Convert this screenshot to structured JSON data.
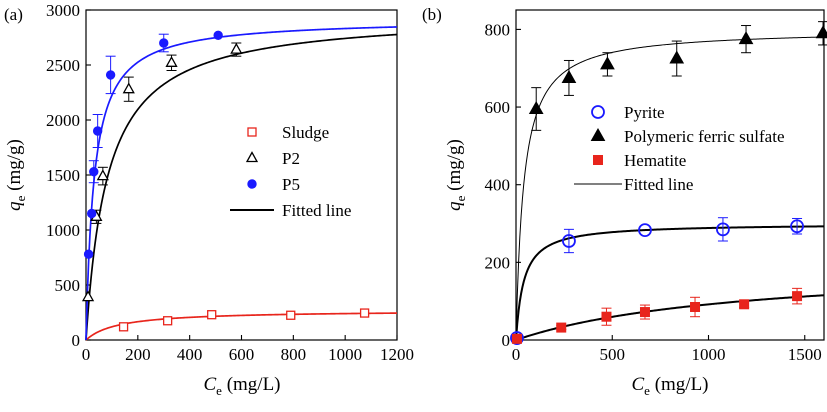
{
  "chart_data": [
    {
      "type": "scatter",
      "panel_label": "(a)",
      "xlabel": {
        "main": "C",
        "sub": "e",
        "unit": " (mg/L)"
      },
      "ylabel": {
        "main": "q",
        "sub": "e",
        "unit": " (mg/g)"
      },
      "xlim": [
        0,
        1200
      ],
      "ylim": [
        0,
        3000
      ],
      "xticks": [
        0,
        200,
        400,
        600,
        800,
        1000,
        1200
      ],
      "yticks": [
        0,
        500,
        1000,
        1500,
        2000,
        2500,
        3000
      ],
      "legend_position": "center-right",
      "series": [
        {
          "name": "Sludge",
          "marker": "open-square",
          "color": "#e8251c",
          "x": [
            145,
            315,
            485,
            790,
            1075
          ],
          "y": [
            120,
            175,
            230,
            225,
            245
          ],
          "err": [
            0,
            0,
            0,
            0,
            0
          ],
          "fit": {
            "qmax": 270,
            "K": 0.008
          }
        },
        {
          "name": "P2",
          "marker": "open-triangle",
          "color": "#000000",
          "x": [
            8,
            40,
            65,
            165,
            330,
            580
          ],
          "y": [
            390,
            1120,
            1490,
            2280,
            2520,
            2640
          ],
          "err": [
            0,
            60,
            80,
            110,
            70,
            60
          ],
          "fit": {
            "qmax": 2970,
            "K": 0.012
          }
        },
        {
          "name": "P5",
          "marker": "filled-circle",
          "color": "#1a1aff",
          "x": [
            10,
            22,
            30,
            45,
            95,
            300,
            510
          ],
          "y": [
            780,
            1150,
            1530,
            1900,
            2410,
            2700,
            2770
          ],
          "err": [
            0,
            0,
            100,
            150,
            170,
            80,
            0
          ],
          "fit": {
            "qmax": 2920,
            "K": 0.032
          }
        }
      ],
      "fitted_line_label": "Fitted line"
    },
    {
      "type": "scatter",
      "panel_label": "(b)",
      "xlabel": {
        "main": "C",
        "sub": "e",
        "unit": " (mg/L)"
      },
      "ylabel": {
        "main": "q",
        "sub": "e",
        "unit": " (mg/g)"
      },
      "xlim": [
        0,
        1600
      ],
      "ylim": [
        0,
        850
      ],
      "xticks": [
        0,
        500,
        1000,
        1500
      ],
      "yticks": [
        0,
        200,
        400,
        600,
        800
      ],
      "legend_position": "upper-right",
      "series": [
        {
          "name": "Pyrite",
          "marker": "open-circle",
          "color": "#1a1aff",
          "x": [
            5,
            275,
            670,
            1075,
            1460
          ],
          "y": [
            5,
            255,
            283,
            285,
            293
          ],
          "err": [
            0,
            30,
            0,
            30,
            20
          ],
          "fit": {
            "qmax": 300,
            "K": 0.025
          }
        },
        {
          "name": "Polymeric ferric sulfate",
          "marker": "filled-triangle",
          "color": "#000000",
          "x": [
            105,
            275,
            475,
            835,
            1195,
            1595
          ],
          "y": [
            595,
            675,
            710,
            725,
            775,
            790
          ],
          "err": [
            55,
            45,
            30,
            45,
            35,
            30
          ],
          "fit": {
            "qmax": 800,
            "K": 0.025
          }
        },
        {
          "name": "Hematite",
          "marker": "filled-square",
          "color": "#e8251c",
          "x": [
            5,
            235,
            470,
            670,
            930,
            1185,
            1460
          ],
          "y": [
            3,
            32,
            60,
            72,
            85,
            92,
            113
          ],
          "err": [
            0,
            5,
            22,
            18,
            25,
            8,
            20
          ],
          "fit": {
            "qmax": 200,
            "K": 0.00085
          }
        }
      ],
      "fitted_line_label": "Fitted line"
    }
  ]
}
